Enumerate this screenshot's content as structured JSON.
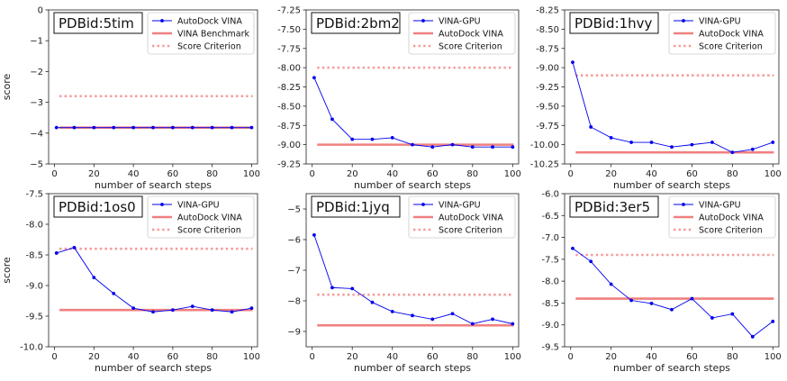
{
  "colors": {
    "vina_line": "#0000ee",
    "reference_line": "#f08080",
    "criterion_line": "#f59a9a",
    "axes": "#222222"
  },
  "chart_data": [
    {
      "type": "line",
      "title": "PDBid:5tim",
      "xlabel": "number of search steps",
      "ylabel": "score",
      "xlim": [
        -3,
        103
      ],
      "ylim": [
        -5,
        0
      ],
      "xticks": [
        0,
        20,
        40,
        60,
        80,
        100
      ],
      "yticks": [
        -5,
        -4,
        -3,
        -2,
        -1,
        0
      ],
      "ytick_labels": [
        "−5",
        "−4",
        "−3",
        "−2",
        "−1",
        "0"
      ],
      "legend": "top-right",
      "series": [
        {
          "name": "AutoDock VINA",
          "kind": "markers",
          "x": [
            1,
            10,
            20,
            30,
            40,
            50,
            60,
            70,
            80,
            90,
            100
          ],
          "y": [
            -3.82,
            -3.82,
            -3.82,
            -3.82,
            -3.82,
            -3.82,
            -3.82,
            -3.82,
            -3.82,
            -3.82,
            -3.82
          ]
        },
        {
          "name": "VINA Benchmark",
          "kind": "reference",
          "y": -3.82
        },
        {
          "name": "Score Criterion",
          "kind": "criterion",
          "y": -2.8
        }
      ]
    },
    {
      "type": "line",
      "title": "PDBid:2bm2",
      "xlabel": "number of search steps",
      "ylabel": "",
      "xlim": [
        -3,
        103
      ],
      "ylim": [
        -9.25,
        -7.25
      ],
      "xticks": [
        0,
        20,
        40,
        60,
        80,
        100
      ],
      "yticks": [
        -9.25,
        -9.0,
        -8.75,
        -8.5,
        -8.25,
        -8.0,
        -7.75,
        -7.5,
        -7.25
      ],
      "ytick_labels": [
        "-9.25",
        "-9.00",
        "-8.75",
        "-8.50",
        "-8.25",
        "-8.00",
        "-7.75",
        "-7.50",
        "-7.25"
      ],
      "legend": "top-right",
      "series": [
        {
          "name": "VINA-GPU",
          "kind": "markers",
          "x": [
            1,
            10,
            20,
            30,
            40,
            50,
            60,
            70,
            80,
            90,
            100
          ],
          "y": [
            -8.13,
            -8.67,
            -8.93,
            -8.93,
            -8.91,
            -9.0,
            -9.03,
            -9.0,
            -9.03,
            -9.03,
            -9.03
          ]
        },
        {
          "name": "AutoDock VINA",
          "kind": "reference",
          "y": -9.0
        },
        {
          "name": "Score Criterion",
          "kind": "criterion",
          "y": -8.0
        }
      ]
    },
    {
      "type": "line",
      "title": "PDBid:1hvy",
      "xlabel": "number of search steps",
      "ylabel": "",
      "xlim": [
        -3,
        103
      ],
      "ylim": [
        -10.25,
        -8.25
      ],
      "xticks": [
        0,
        20,
        40,
        60,
        80,
        100
      ],
      "yticks": [
        -10.25,
        -10.0,
        -9.75,
        -9.5,
        -9.25,
        -9.0,
        -8.75,
        -8.5,
        -8.25
      ],
      "ytick_labels": [
        "-10.25",
        "-10.00",
        "-9.75",
        "-9.50",
        "-9.25",
        "-9.00",
        "-8.75",
        "-8.50",
        "-8.25"
      ],
      "legend": "top-right",
      "series": [
        {
          "name": "VINA-GPU",
          "kind": "markers",
          "x": [
            1,
            10,
            20,
            30,
            40,
            50,
            60,
            70,
            80,
            90,
            100
          ],
          "y": [
            -8.93,
            -9.77,
            -9.91,
            -9.97,
            -9.97,
            -10.03,
            -10.0,
            -9.97,
            -10.1,
            -10.06,
            -9.97
          ]
        },
        {
          "name": "AutoDock VINA",
          "kind": "reference",
          "y": -10.1
        },
        {
          "name": "Score Criterion",
          "kind": "criterion",
          "y": -9.1
        }
      ]
    },
    {
      "type": "line",
      "title": "PDBid:1os0",
      "xlabel": "number of search steps",
      "ylabel": "score",
      "xlim": [
        -3,
        103
      ],
      "ylim": [
        -10.0,
        -7.5
      ],
      "xticks": [
        0,
        20,
        40,
        60,
        80,
        100
      ],
      "yticks": [
        -10.0,
        -9.5,
        -9.0,
        -8.5,
        -8.0,
        -7.5
      ],
      "ytick_labels": [
        "-10.0",
        "-9.5",
        "-9.0",
        "-8.5",
        "-8.0",
        "-7.5"
      ],
      "legend": "top-right",
      "series": [
        {
          "name": "VINA-GPU",
          "kind": "markers",
          "x": [
            1,
            10,
            20,
            30,
            40,
            50,
            60,
            70,
            80,
            90,
            100
          ],
          "y": [
            -8.47,
            -8.38,
            -8.87,
            -9.13,
            -9.37,
            -9.43,
            -9.4,
            -9.34,
            -9.4,
            -9.43,
            -9.37
          ]
        },
        {
          "name": "AutoDock VINA",
          "kind": "reference",
          "y": -9.4
        },
        {
          "name": "Score Criterion",
          "kind": "criterion",
          "y": -8.4
        }
      ]
    },
    {
      "type": "line",
      "title": "PDBid:1jyq",
      "xlabel": "number of search steps",
      "ylabel": "",
      "xlim": [
        -3,
        103
      ],
      "ylim": [
        -9.5,
        -4.5
      ],
      "xticks": [
        0,
        20,
        40,
        60,
        80,
        100
      ],
      "yticks": [
        -9,
        -8,
        -7,
        -6,
        -5
      ],
      "ytick_labels": [
        "−9",
        "−8",
        "−7",
        "−6",
        "−5"
      ],
      "legend": "top-right",
      "series": [
        {
          "name": "VINA-GPU",
          "kind": "markers",
          "x": [
            1,
            10,
            20,
            30,
            40,
            50,
            60,
            70,
            80,
            90,
            100
          ],
          "y": [
            -5.85,
            -7.57,
            -7.6,
            -8.05,
            -8.35,
            -8.48,
            -8.6,
            -8.42,
            -8.75,
            -8.6,
            -8.75
          ]
        },
        {
          "name": "AutoDock VINA",
          "kind": "reference",
          "y": -8.8
        },
        {
          "name": "Score Criterion",
          "kind": "criterion",
          "y": -7.8
        }
      ]
    },
    {
      "type": "line",
      "title": "PDBid:3er5",
      "xlabel": "number of search steps",
      "ylabel": "",
      "xlim": [
        -3,
        103
      ],
      "ylim": [
        -9.5,
        -6.0
      ],
      "xticks": [
        0,
        20,
        40,
        60,
        80,
        100
      ],
      "yticks": [
        -9.5,
        -9.0,
        -8.5,
        -8.0,
        -7.5,
        -7.0,
        -6.5,
        -6.0
      ],
      "ytick_labels": [
        "-9.5",
        "-9.0",
        "-8.5",
        "-8.0",
        "-7.5",
        "-7.0",
        "-6.5",
        "-6.0"
      ],
      "legend": "top-right",
      "series": [
        {
          "name": "VINA-GPU",
          "kind": "markers",
          "x": [
            1,
            10,
            20,
            30,
            40,
            50,
            60,
            70,
            80,
            90,
            100
          ],
          "y": [
            -7.25,
            -7.55,
            -8.07,
            -8.44,
            -8.51,
            -8.65,
            -8.4,
            -8.84,
            -8.75,
            -9.27,
            -8.92
          ]
        },
        {
          "name": "AutoDock VINA",
          "kind": "reference",
          "y": -8.4
        },
        {
          "name": "Score Criterion",
          "kind": "criterion",
          "y": -7.4
        }
      ]
    }
  ]
}
